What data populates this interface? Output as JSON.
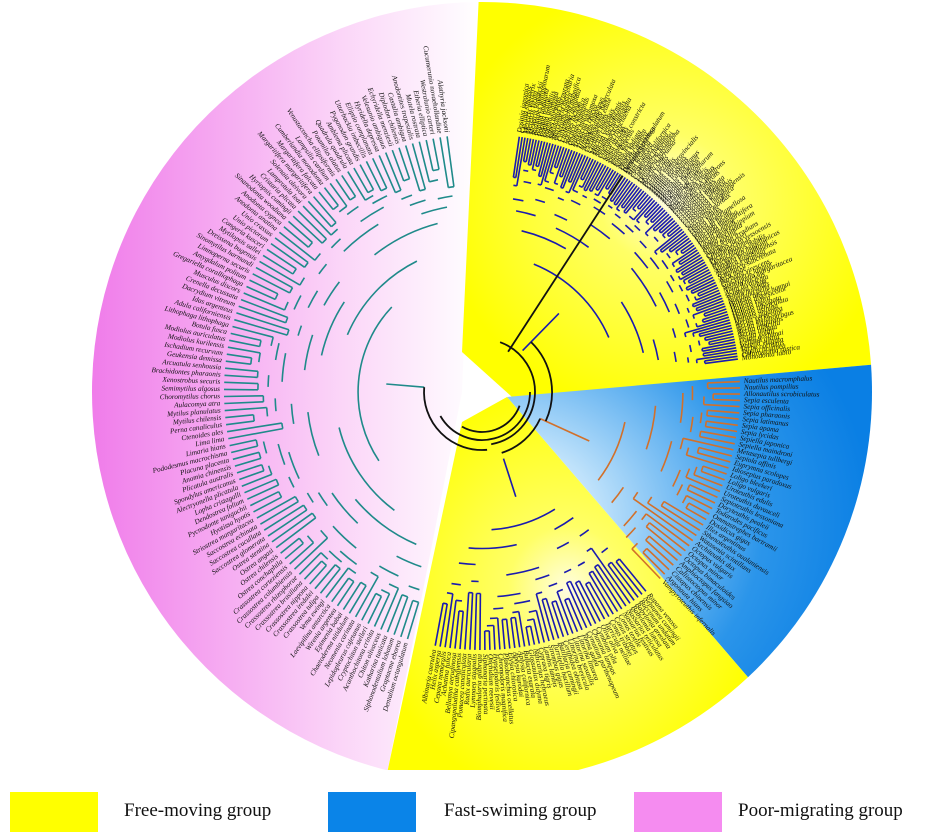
{
  "colors": {
    "free_moving": "#ffff00",
    "fast_swimming": "#0a84e8",
    "poor_migrating": "#f58cf0",
    "branch_free": "#1a1ab0",
    "branch_fast": "#d2702a",
    "branch_poor": "#1f8a8a",
    "branch_root": "#111111"
  },
  "legend": {
    "free": "Free-moving group",
    "fast": "Fast-swiming group",
    "poor": "Poor-migrating group"
  },
  "tips": {
    "free_a": [
      "Dosinia japonica",
      "Cyclina sinensis",
      "Meretrix meretrix",
      "Meretrix lyrata",
      "Meretrix lamarckii",
      "Ruditapes philippinarum",
      "Paphia undulata",
      "Paphia textile",
      "Paphia amabilis",
      "Paphia euglypta",
      "Tapes dorsatus",
      "Saxidomus purpurata",
      "Mercenaria mercenaria",
      "Venerupis aspera",
      "Calyptogena magnifica",
      "Lucinoma annulata",
      "Loripes lacteus",
      "Arctica islandica",
      "Glossus humanus",
      "Fulvia mutica",
      "Tridacna squamosa",
      "Tridacna crocea",
      "Hippopus hippopus",
      "Acanthocardia tuberculata",
      "Cerastoderma edule",
      "Cardium hians",
      "Mactra chinensis",
      "Mactra veneriformis",
      "Spisula sachalinensis",
      "Coelomactra antiquata",
      "Lutraria rhynchaena",
      "Solen strictus",
      "Solen grandis",
      "Sinonovacula constricta",
      "Ensis directus",
      "Ensis leei",
      "Siliqua radiata",
      "Pharus legumen",
      "Hiatella arctica",
      "Panopea generosa",
      "Mya arenaria",
      "Mya truncata",
      "Cryptomya californica",
      "Corbicula fluminea",
      "Limnoperna fortunei",
      "Dreissena polymorpha",
      "Mytella charruana",
      "Perna viridis",
      "Perna perna",
      "Mytilus edulis",
      "Mytilus galloprovincialis",
      "Mytilus coruscus",
      "Mytilus trossulus",
      "Mytilus californianus",
      "Musculus senhousei",
      "Modiolus modiolus",
      "Modiolus philippinarum",
      "Lithophaga curta",
      "Septifer bilocularis",
      "Brachidontes exustus",
      "Bathymodiolus platifrons",
      "Gigantidas platifrons",
      "Crassostrea gigas",
      "Crassostrea angulata",
      "Crassostrea sikamea",
      "Crassostrea ariakensis",
      "Crassostrea hongkongensis",
      "Crassostrea virginica",
      "Saccostrea mordax",
      "Ostrea edulis",
      "Ostrea lurida",
      "Ostrea denselamellosa",
      "Pinctada fucata",
      "Pinctada maxima",
      "Pinctada margaritifera",
      "Pteria penguin",
      "Isognomon ephippium",
      "Atrina pectinata",
      "Pinna nobilis",
      "Argopecten irradians",
      "Chlamys farreri",
      "Mizuhopecten yessoensis",
      "Pecten maximus",
      "Mimachlamys nobilis",
      "Placopecten magellanicus",
      "Anadara broughtonii",
      "Anadara kagoshimensis",
      "Tegillarca granosa",
      "Scapharca subcrenata",
      "Arca noae",
      "Barbatia virescens",
      "Glycymeris longior",
      "Neotrigonia margaritacea",
      "Nucula nucleus",
      "Acila divaricata",
      "Solemya velum",
      "Yoldia notabilis",
      "Nuculana pella",
      "Haliotis discus hannai",
      "Haliotis diversicolor",
      "Haliotis rubra",
      "Haliotis laevigata",
      "Haliotis tuberculata",
      "Haliotis asinina",
      "Haliotis gigantea",
      "Nerita versicolor",
      "Nerita melanotragus",
      "Nerita fulgurans",
      "Nerita albicilla",
      "Nerita undata",
      "Nerita yoldii",
      "Lottia goshimai",
      "Cellana grata",
      "Patella vulgata",
      "Turbo cornutus",
      "Tegula brunnea",
      "Chlorostoma rustica",
      "Monodonta labio"
    ],
    "fast": [
      "Nautilus macromphalus",
      "Nautilus pompilius",
      "Allonautilus scrobiculatus",
      "Sepia esculenta",
      "Sepia officinalis",
      "Sepia pharaonis",
      "Sepia latimanus",
      "Sepia apama",
      "Sepia lycidas",
      "Sepiella japonica",
      "Sepiella maindroni",
      "Metasepia tullbergi",
      "Sepiola affinis",
      "Euprymna scolopes",
      "Idiosepius paradoxus",
      "Loligo bleekeri",
      "Loligo vulgaris",
      "Uroteuthis edulis",
      "Uroteuthis duvauceli",
      "Sepioteuthis lessoniana",
      "Doryteuthis pealeii",
      "Todarodes pacificus",
      "Ommastrephes bartramii",
      "Dosidicus gigas",
      "Illex argentinus",
      "Sthenoteuthis oualaniensis",
      "Watasenia scintillans",
      "Architeuthis dux",
      "Octopus vulgaris",
      "Octopus minor",
      "Octopus bimaculoides",
      "Amphioctopus fangsiao",
      "Callistoctopus minor",
      "Cistopus chinensis",
      "Argonauta hians",
      "Vampyroteuthis infernalis"
    ],
    "free_b": [
      "Rapana venosa",
      "Neptunea cumingii",
      "Buccinum undatum",
      "Babylonia areolata",
      "Babylonia lutosa",
      "Nassarius reticulatus",
      "Nassarius festivus",
      "Conus textile",
      "Conus striatus",
      "Conus tribblei",
      "Turricula nelliae",
      "Oliva oliva",
      "Cymbium olla",
      "Charonia lampas",
      "Cymatium parthenopeum",
      "Tonna galea",
      "Littorina littorea",
      "Littorina saxatilis",
      "Littorina brevicula",
      "Cerithidea obtusa",
      "Batillaria cumingii",
      "Turritella bacillum",
      "Strombus gigas",
      "Lambis lambis",
      "Cypraea tigris",
      "Naticarius hebraeus",
      "Glossaulax didyma",
      "Bullacta exarata",
      "Aplysia californica",
      "Aplysia kurodai",
      "Elysia chlorotica",
      "Plakobranchus ocellatus",
      "Chromodoris magnifica",
      "Hypselodoris festiva",
      "Onchidium reevesii",
      "Siphonaria pectinata",
      "Biomphalaria glabrata",
      "Lymnaea stagnalis",
      "Radix auricularia",
      "Pomacea canaliculata",
      "Cipangopaludina cathayensis",
      "Bellamya aeruginosa",
      "Achatina fulica",
      "Cepaea nemoralis",
      "Helix aspersa",
      "Albinaria caerulea"
    ],
    "poor": [
      "Dentalium octangulatum",
      "Graptacme eborea",
      "Siphonodentalium lobatum",
      "Katharina tunicata",
      "Chiton olivaceus",
      "Acanthochitona crinita",
      "Cryptochiton stelleri",
      "Lepidopleurus cajetanus",
      "Neomenia carinata",
      "Chaetoderma nitidulum",
      "Epimenia babai",
      "Wirenia argentea",
      "Laevipilina antarctica",
      "Vema ewingi",
      "Crassostrea tulipa",
      "Crassostrea iredalei",
      "Crassostrea nippona",
      "Crassostrea brasiliana",
      "Crassostrea rhizophorae",
      "Crassostrea columbiensis",
      "Crassostrea corteziensis",
      "Ostrea conchaphila",
      "Ostrea chilensis",
      "Ostrea angasi",
      "Ostrea stentina",
      "Saccostrea glomerata",
      "Saccostrea cucullata",
      "Saccostrea echinata",
      "Striostrea margaritacea",
      "Hyotissa hyotis",
      "Pycnodonte taniguchii",
      "Dendostrea folium",
      "Lopha cristagalli",
      "Alectryonella plicatula",
      "Spondylus americanus",
      "Plicatula australis",
      "Anomia chinensis",
      "Placuna placenta",
      "Pododesmus macrochisma",
      "Limaria hians",
      "Lima lima",
      "Ctenoides ales",
      "Perna canaliculus",
      "Mytilus chilensis",
      "Mytilus planulatus",
      "Aulacomya atra",
      "Choromytilus chorus",
      "Semimytilus algosus",
      "Xenostrobus securis",
      "Brachidontes pharaonis",
      "Arcuatula senhousia",
      "Geukensia demissa",
      "Ischadium recurvum",
      "Modiolus kurilensis",
      "Modiolus auriculatus",
      "Botula fusca",
      "Lithophaga lithophaga",
      "Adula californiensis",
      "Idas argenteus",
      "Dacrydium vitreum",
      "Crenella decussata",
      "Musculus discors",
      "Gregariella coralliophaga",
      "Amygdalum politum",
      "Limnoperna securis",
      "Sinomytilus harmandi",
      "Dreissena bugensis",
      "Mytilopsis sallei",
      "Congeria kusceri",
      "Unio pictorum",
      "Unio crassus",
      "Anodonta anatina",
      "Anodonta cygnea",
      "Sinanodonta woodiana",
      "Hyriopsis cumingii",
      "Cristaria plicata",
      "Lamprotula leai",
      "Solenaia oleivora",
      "Margaritifera margaritifera",
      "Margaritifera falcata",
      "Cumberlandia monodonta",
      "Lampsilis cardium",
      "Venustaconcha ellipsiformis",
      "Potamilus alatus",
      "Quadrula quadrula",
      "Amblema plicata",
      "Pyganodon grandis",
      "Utterbackia imbecillis",
      "Elliptio complanata",
      "Hyridella depressa",
      "Velesunio ambiguus",
      "Echyridella menziesii",
      "Diplodon chilensis",
      "Castalia ambigua",
      "Anodontites trapesialis",
      "Mutela rostrata",
      "Etheria elliptica",
      "Westralunio carteri",
      "Cucumerunio novaehollandiae",
      "Alathyria jacksoni"
    ]
  }
}
